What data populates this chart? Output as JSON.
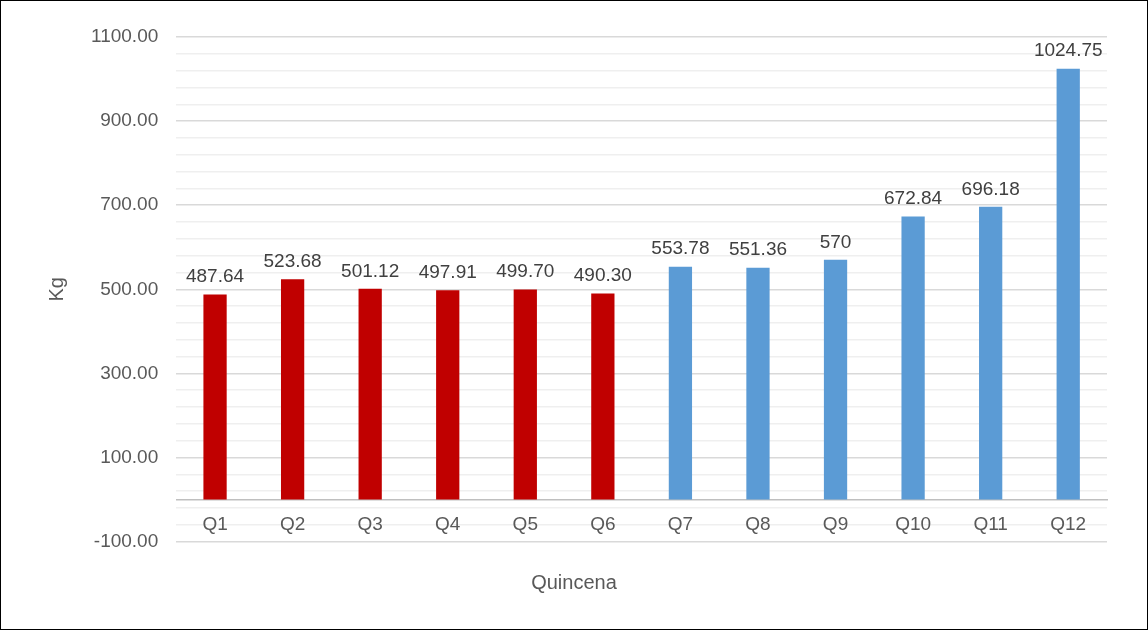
{
  "chart_data": {
    "type": "bar",
    "xlabel": "Quincena",
    "ylabel": "Kg",
    "categories": [
      "Q1",
      "Q2",
      "Q3",
      "Q4",
      "Q5",
      "Q6",
      "Q7",
      "Q8",
      "Q9",
      "Q10",
      "Q11",
      "Q12"
    ],
    "values": [
      487.64,
      523.68,
      501.12,
      497.91,
      499.7,
      490.3,
      553.78,
      551.36,
      570,
      672.84,
      696.18,
      1024.75
    ],
    "value_labels": [
      "487.64",
      "523.68",
      "501.12",
      "497.91",
      "499.70",
      "490.30",
      "553.78",
      "551.36",
      "570",
      "672.84",
      "696.18",
      "1024.75"
    ],
    "colors": [
      "#c00000",
      "#c00000",
      "#c00000",
      "#c00000",
      "#c00000",
      "#c00000",
      "#5b9bd5",
      "#5b9bd5",
      "#5b9bd5",
      "#5b9bd5",
      "#5b9bd5",
      "#5b9bd5"
    ],
    "ylim": [
      -100,
      1100
    ],
    "yticks": [
      {
        "value": -100,
        "label": "-100.00"
      },
      {
        "value": -60,
        "label": null
      },
      {
        "value": -20,
        "label": null
      },
      {
        "value": 20,
        "label": null
      },
      {
        "value": 60,
        "label": null
      },
      {
        "value": 100,
        "label": "100.00"
      },
      {
        "value": 140,
        "label": null
      },
      {
        "value": 180,
        "label": null
      },
      {
        "value": 220,
        "label": null
      },
      {
        "value": 260,
        "label": null
      },
      {
        "value": 300,
        "label": "300.00"
      },
      {
        "value": 340,
        "label": null
      },
      {
        "value": 380,
        "label": null
      },
      {
        "value": 420,
        "label": null
      },
      {
        "value": 460,
        "label": null
      },
      {
        "value": 500,
        "label": "500.00"
      },
      {
        "value": 540,
        "label": null
      },
      {
        "value": 580,
        "label": null
      },
      {
        "value": 620,
        "label": null
      },
      {
        "value": 660,
        "label": null
      },
      {
        "value": 700,
        "label": "700.00"
      },
      {
        "value": 740,
        "label": null
      },
      {
        "value": 780,
        "label": null
      },
      {
        "value": 820,
        "label": null
      },
      {
        "value": 860,
        "label": null
      },
      {
        "value": 900,
        "label": "900.00"
      },
      {
        "value": 940,
        "label": null
      },
      {
        "value": 980,
        "label": null
      },
      {
        "value": 1020,
        "label": null
      },
      {
        "value": 1060,
        "label": null
      },
      {
        "value": 1100,
        "label": "1100.00"
      }
    ],
    "grid": "y",
    "legend": false
  }
}
